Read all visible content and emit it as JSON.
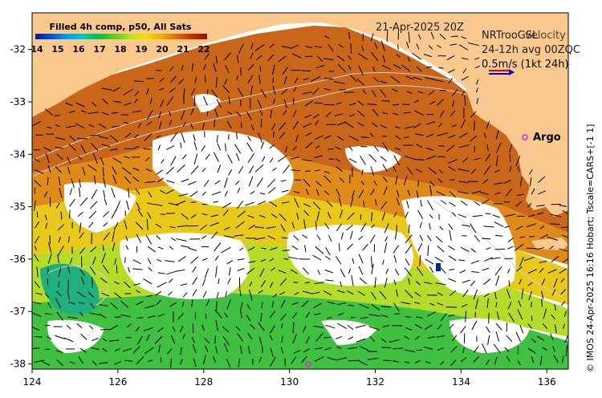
{
  "colorbar": {
    "title": "Filled 4h comp, p50, All Sats",
    "ticks": [
      "14",
      "15",
      "16",
      "17",
      "18",
      "19",
      "20",
      "21",
      "22"
    ],
    "colors": [
      "#0a1a9a",
      "#0050e0",
      "#00a0f0",
      "#00c8c8",
      "#00c050",
      "#50d020",
      "#b0e020",
      "#f0e000",
      "#f0b000",
      "#e07000",
      "#c83000",
      "#901010"
    ]
  },
  "header": {
    "date": "21-Apr-2025 20Z",
    "legend_line1": "NRTrooGSL",
    "legend_line1_overlay": "velocity",
    "legend_line2": "24-12h avg 00ZQC",
    "legend_line3": "0.5m/s (1kt 24h)"
  },
  "markers": {
    "argo_label": "Argo",
    "argo_color": "#e020e0"
  },
  "side_credit": "© IMOS 24-Apr-2025 16:16 Hobart; Tscale=CARS+[-1 1]",
  "axes": {
    "x_ticks": [
      "124",
      "126",
      "128",
      "130",
      "132",
      "134",
      "136"
    ],
    "y_ticks": [
      "-32",
      "-33",
      "-34",
      "-35",
      "-36",
      "-37",
      "-38"
    ],
    "xlim": [
      124,
      136.5
    ],
    "ylim": [
      -38.1,
      -31.3
    ]
  },
  "colors": {
    "land": "#fbc98e",
    "frame": "#000000"
  }
}
